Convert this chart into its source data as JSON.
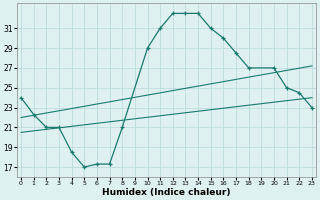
{
  "main_curve_x": [
    0,
    1,
    2,
    3,
    4,
    5,
    6,
    7,
    8,
    10,
    11,
    12,
    13,
    14,
    15,
    16,
    17,
    18,
    20,
    21,
    22,
    23
  ],
  "main_curve_y": [
    24.0,
    22.3,
    21.0,
    21.0,
    18.5,
    17.0,
    17.3,
    17.3,
    21.0,
    29.0,
    31.0,
    32.5,
    32.5,
    32.5,
    31.0,
    30.0,
    28.5,
    27.0,
    27.0,
    25.0,
    24.5,
    23.0
  ],
  "trend1_x": [
    0,
    23
  ],
  "trend1_y": [
    22.0,
    27.2
  ],
  "trend2_x": [
    0,
    23
  ],
  "trend2_y": [
    20.5,
    24.0
  ],
  "xlabel": "Humidex (Indice chaleur)",
  "ylim": [
    16.0,
    33.5
  ],
  "xlim": [
    -0.3,
    23.3
  ],
  "yticks": [
    17,
    19,
    21,
    23,
    25,
    27,
    29,
    31
  ],
  "xticks": [
    0,
    1,
    2,
    3,
    4,
    5,
    6,
    7,
    8,
    9,
    10,
    11,
    12,
    13,
    14,
    15,
    16,
    17,
    18,
    19,
    20,
    21,
    22,
    23
  ],
  "line_color": "#1a7a6e",
  "bg_color": "#dff0f0",
  "grid_color": "#b8d8d8"
}
